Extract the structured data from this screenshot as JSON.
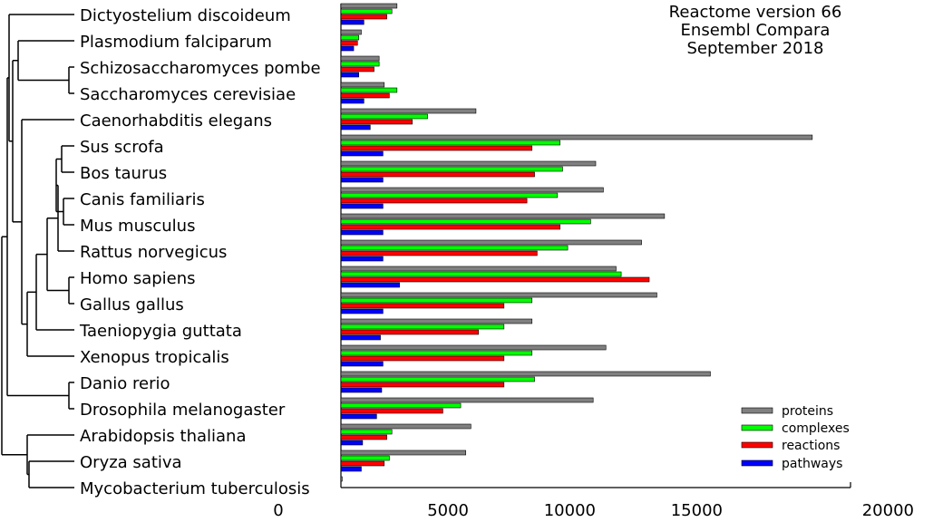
{
  "chart_data": {
    "type": "bar",
    "orientation": "horizontal",
    "title_lines": [
      "Reactome version 66",
      "Ensembl Compara",
      "September 2018"
    ],
    "categories": [
      "Dictyostelium discoideum",
      "Plasmodium falciparum",
      "Schizosaccharomyces pombe",
      "Saccharomyces cerevisiae",
      "Caenorhabditis elegans",
      "Sus scrofa",
      "Bos taurus",
      "Canis familiaris",
      "Mus musculus",
      "Rattus norvegicus",
      "Homo sapiens",
      "Gallus gallus",
      "Taeniopygia guttata",
      "Xenopus tropicalis",
      "Danio rerio",
      "Drosophila melanogaster",
      "Arabidopsis thaliana",
      "Oryza sativa",
      "Mycobacterium tuberculosis"
    ],
    "series": [
      {
        "name": "proteins",
        "color": "#808080",
        "values": [
          2200,
          800,
          1500,
          1700,
          5300,
          18500,
          10000,
          10300,
          12700,
          11800,
          10800,
          12400,
          7500,
          10400,
          14500,
          9900,
          5100,
          4900,
          50
        ]
      },
      {
        "name": "complexes",
        "color": "#00ff00",
        "values": [
          2000,
          700,
          1500,
          2200,
          3400,
          8600,
          8700,
          8500,
          9800,
          8900,
          11000,
          7500,
          6400,
          7500,
          7600,
          4700,
          2000,
          1900,
          0
        ]
      },
      {
        "name": "reactions",
        "color": "#ff0000",
        "values": [
          1800,
          650,
          1300,
          1900,
          2800,
          7500,
          7600,
          7300,
          8600,
          7700,
          12100,
          6400,
          5400,
          6400,
          6400,
          4000,
          1800,
          1700,
          0
        ]
      },
      {
        "name": "pathways",
        "color": "#0000ff",
        "values": [
          900,
          500,
          700,
          900,
          1150,
          1650,
          1650,
          1650,
          1650,
          1650,
          2300,
          1650,
          1550,
          1650,
          1600,
          1400,
          850,
          800,
          0
        ]
      }
    ],
    "x_ticks": [
      "0",
      "5000",
      "10000",
      "15000",
      "20000"
    ],
    "xlim": [
      0,
      20000
    ],
    "legend_position": "bottom-right",
    "grid": false,
    "tree": {
      "description_free": true,
      "structure": "((Dictyostelium discoideum,(Plasmodium falciparum,(Schizosaccharomyces pombe,Saccharomyces cerevisiae)),(Caenorhabditis elegans,((((Sus scrofa,Bos taurus),(Canis familiaris,Mus musculus),Rattus norvegicus),(Homo sapiens,Gallus gallus)),Taeniopygia guttata),Xenopus tropicalis)),(Danio rerio,Drosophila melanogaster)),(Arabidopsis thaliana,(Oryza sativa,Mycobacterium tuberculosis)))"
    }
  }
}
